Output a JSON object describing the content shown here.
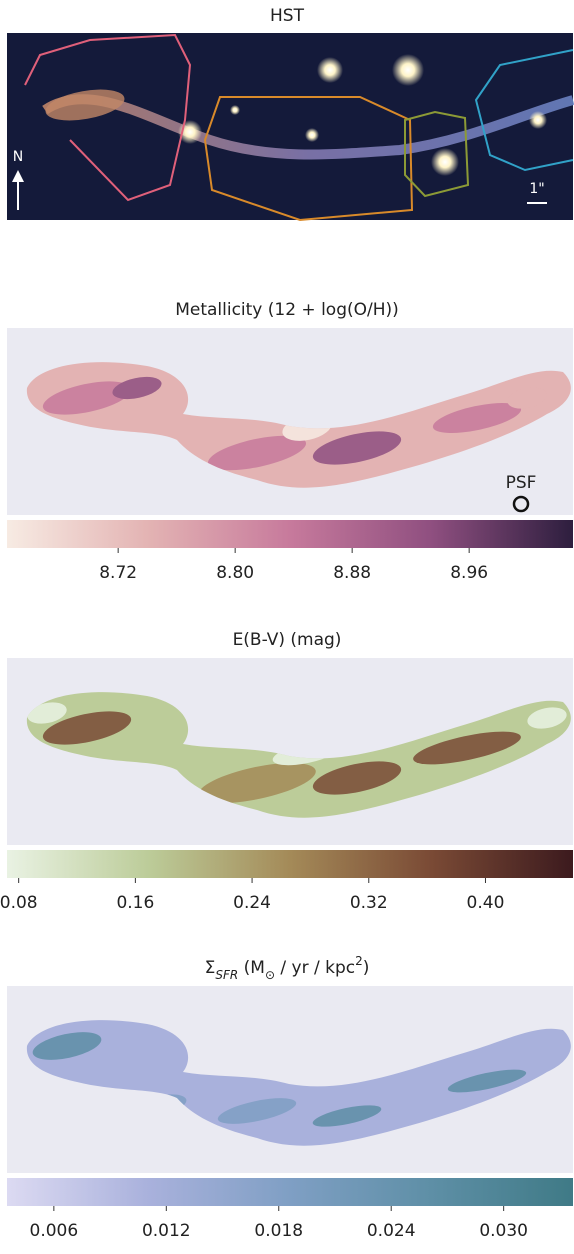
{
  "header": {
    "title": "HST",
    "north": "N",
    "scale": "1\""
  },
  "panels": [
    {
      "title_parts": [
        {
          "text": "Metallicity (12 + log(O/H))",
          "style": "normal"
        }
      ],
      "psf_label": "PSF",
      "colorbar": {
        "lim": [
          8.644,
          9.031
        ],
        "ticks": [
          8.72,
          {
            "value": 8.8,
            "label": "8.80"
          },
          8.88,
          8.96
        ],
        "colors": [
          "#f7ebe3",
          "#e3b3b3",
          "#c77a9c",
          "#8f4f80",
          "#2d1e3e"
        ]
      }
    },
    {
      "title_parts": [
        {
          "text": "E(B-V) (mag)",
          "style": "normal"
        }
      ],
      "colorbar": {
        "lim": [
          0.072,
          0.46
        ],
        "ticks": [
          0.08,
          0.16,
          0.24,
          0.32,
          {
            "value": 0.4,
            "label": "0.40"
          }
        ],
        "colors": [
          "#e9f2e3",
          "#bccc99",
          "#a48a58",
          "#7a4a35",
          "#3c1a1e"
        ]
      }
    },
    {
      "title_parts": [
        {
          "text": "Σ",
          "style": "normal"
        },
        {
          "text": "SFR",
          "style": "sub"
        },
        {
          "text": " (M",
          "style": "normal"
        },
        {
          "text": "⊙",
          "style": "sub"
        },
        {
          "text": " / yr / kpc",
          "style": "normal"
        },
        {
          "text": "2",
          "style": "sup"
        },
        {
          "text": ")",
          "style": "normal"
        }
      ],
      "colorbar": {
        "lim": [
          0.0035,
          0.0337
        ],
        "ticks": [
          0.006,
          0.012,
          0.018,
          0.024,
          {
            "value": 0.03,
            "label": "0.030"
          }
        ],
        "colors": [
          "#dcdaf2",
          "#a9b1dc",
          "#7f9fc4",
          "#5e8fa6",
          "#3f7a86"
        ]
      }
    }
  ]
}
